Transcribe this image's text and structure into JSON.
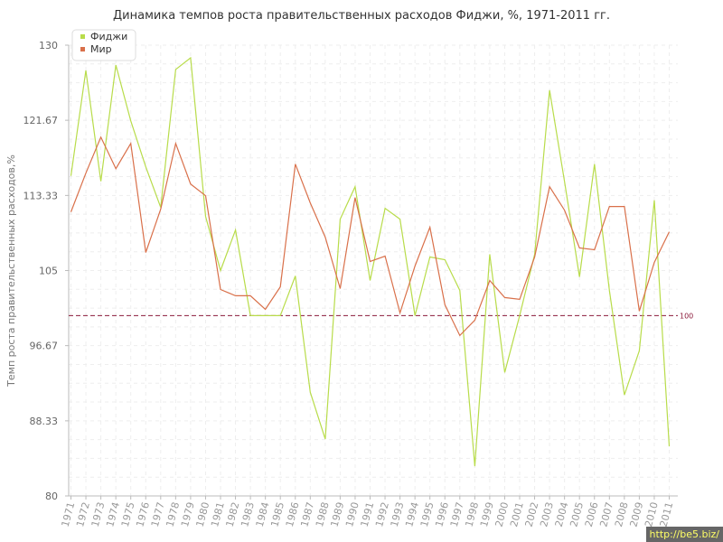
{
  "title": "Динамика темпов роста правительственных расходов Фиджи, %, 1971-2011 гг.",
  "chart_data": {
    "type": "line",
    "title": "Динамика темпов роста правительственных расходов Фиджи, %, 1971-2011 гг.",
    "ylabel": "Темп роста правительственных расходов,%",
    "xlabel": "",
    "ylim": [
      80,
      130
    ],
    "yticks": [
      "80",
      "88.33",
      "96.67",
      "105",
      "113.33",
      "121.67",
      "130"
    ],
    "grid": true,
    "legend_position": "top-left",
    "reference_line": {
      "value": 100,
      "label": "100",
      "color": "#8b1a3a"
    },
    "x": [
      "1971",
      "1972",
      "1973",
      "1974",
      "1975",
      "1976",
      "1977",
      "1978",
      "1979",
      "1980",
      "1981",
      "1982",
      "1983",
      "1984",
      "1985",
      "1986",
      "1987",
      "1988",
      "1989",
      "1990",
      "1991",
      "1992",
      "1993",
      "1994",
      "1995",
      "1996",
      "1997",
      "1998",
      "1999",
      "2000",
      "2001",
      "2002",
      "2003",
      "2004",
      "2005",
      "2006",
      "2007",
      "2008",
      "2009",
      "2010",
      "2011"
    ],
    "series": [
      {
        "name": "Фиджи",
        "color": "#b8dc4a",
        "values": [
          115.5,
          127.2,
          114.9,
          127.8,
          121.6,
          116.5,
          112.0,
          127.3,
          128.6,
          111.0,
          105.0,
          109.5,
          100.0,
          100.0,
          100.0,
          104.4,
          91.5,
          86.3,
          110.7,
          114.3,
          103.9,
          111.9,
          110.7,
          100.0,
          106.5,
          106.2,
          102.8,
          83.3,
          106.8,
          93.7,
          100.0,
          106.8,
          125.0,
          114.9,
          104.3,
          116.8,
          102.8,
          91.2,
          96.1,
          112.8,
          85.5
        ]
      },
      {
        "name": "Мир",
        "color": "#d9704a",
        "values": [
          111.5,
          115.8,
          119.8,
          116.3,
          119.1,
          107.0,
          111.8,
          119.1,
          114.6,
          113.3,
          102.9,
          102.2,
          102.2,
          100.7,
          103.2,
          116.8,
          112.5,
          108.7,
          103.0,
          113.1,
          106.0,
          106.6,
          100.3,
          105.5,
          109.8,
          101.2,
          97.8,
          99.5,
          103.9,
          102.0,
          101.8,
          106.5,
          114.3,
          111.7,
          107.5,
          107.3,
          112.1,
          112.1,
          100.5,
          105.9,
          109.3
        ]
      }
    ]
  },
  "watermark": "http://be5.biz/"
}
